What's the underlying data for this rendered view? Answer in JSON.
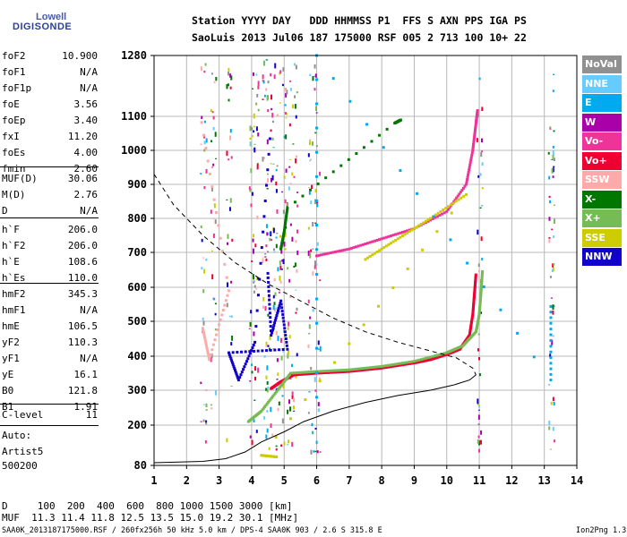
{
  "logo": {
    "line1": "Lowell",
    "line2": "DIGISONDE"
  },
  "header": {
    "row1": "Station YYYY DAY   DDD HHMMSS P1  FFS S AXN PPS IGA PS",
    "row2": "SaoLuis 2013 Jul06 187 175000 RSF 005 2 713 100 10+ 22"
  },
  "params": {
    "group1": [
      {
        "name": "foF2",
        "value": "10.900"
      },
      {
        "name": "foF1",
        "value": "N/A"
      },
      {
        "name": "foF1p",
        "value": "N/A"
      },
      {
        "name": "foE",
        "value": "3.56"
      },
      {
        "name": "foEp",
        "value": "3.40"
      },
      {
        "name": "fxI",
        "value": "11.20"
      },
      {
        "name": "foEs",
        "value": "4.00"
      },
      {
        "name": "fmin",
        "value": "2.60"
      }
    ],
    "group2": [
      {
        "name": "MUF(D)",
        "value": "30.06"
      },
      {
        "name": "M(D)",
        "value": "2.76"
      },
      {
        "name": "D",
        "value": "N/A"
      }
    ],
    "group3": [
      {
        "name": "h`F",
        "value": "206.0"
      },
      {
        "name": "h`F2",
        "value": "206.0"
      },
      {
        "name": "h`E",
        "value": "108.6"
      },
      {
        "name": "h`Es",
        "value": "110.0"
      }
    ],
    "group4": [
      {
        "name": "hmF2",
        "value": "345.3"
      },
      {
        "name": "hmF1",
        "value": "N/A"
      },
      {
        "name": "hmE",
        "value": "106.5"
      },
      {
        "name": "yF2",
        "value": "110.3"
      },
      {
        "name": "yF1",
        "value": "N/A"
      },
      {
        "name": "yE",
        "value": "16.1"
      },
      {
        "name": "B0",
        "value": "121.8"
      },
      {
        "name": "B1",
        "value": "1.91"
      }
    ],
    "group5": [
      {
        "name": "C-level",
        "value": "11"
      }
    ]
  },
  "autoscale": {
    "line1": "Auto:",
    "line2": "Artist5",
    "line3": "500200"
  },
  "legend": [
    {
      "label": "NoVal",
      "color": "#909090"
    },
    {
      "label": "NNE",
      "color": "#66ccff"
    },
    {
      "label": "E",
      "color": "#00aaee"
    },
    {
      "label": "W",
      "color": "#aa00aa"
    },
    {
      "label": "Vo-",
      "color": "#ee3399"
    },
    {
      "label": "Vo+",
      "color": "#ee0033"
    },
    {
      "label": "SSW",
      "color": "#ffaaaa"
    },
    {
      "label": "X-",
      "color": "#007700"
    },
    {
      "label": "X+",
      "color": "#77bb55"
    },
    {
      "label": "SSE",
      "color": "#cccc00"
    },
    {
      "label": "NNW",
      "color": "#1100cc"
    }
  ],
  "muf_table": {
    "row1": "D     100  200  400  600  800 1000 1500 3000 [km]",
    "row2": "MUF  11.3 11.4 11.8 12.5 13.5 15.0 19.2 30.1 [MHz]"
  },
  "footer": {
    "left": "SAA0K_2013187175000.RSF / 260fx256h 50 kHz 5.0 km / DPS-4 SAA0K 903 / 2.6 S 315.8 E",
    "right": "Ion2Png 1.3.17"
  },
  "chart_data": {
    "type": "scatter",
    "xlim": [
      1,
      14
    ],
    "ylim": [
      80,
      1280
    ],
    "x_ticks": [
      "1",
      "2",
      "3",
      "4",
      "5",
      "6",
      "7",
      "8",
      "9",
      "10",
      "11",
      "12",
      "13",
      "14"
    ],
    "y_ticks": [
      "80",
      "200",
      "300",
      "400",
      "500",
      "600",
      "700",
      "800",
      "900",
      "1000",
      "1100",
      "1280"
    ],
    "grid": true,
    "series": [
      {
        "name": "Vo+",
        "color": "#ee0033",
        "points": [
          [
            4.6,
            305
          ],
          [
            4.9,
            325
          ],
          [
            5.3,
            345
          ],
          [
            6,
            350
          ],
          [
            7,
            355
          ],
          [
            8,
            365
          ],
          [
            9,
            380
          ],
          [
            9.5,
            390
          ],
          [
            10,
            405
          ],
          [
            10.4,
            420
          ],
          [
            10.7,
            460
          ],
          [
            10.8,
            520
          ],
          [
            10.85,
            580
          ],
          [
            10.9,
            640
          ]
        ]
      },
      {
        "name": "X+",
        "color": "#77bb55",
        "points": [
          [
            3.9,
            210
          ],
          [
            4.3,
            240
          ],
          [
            4.8,
            300
          ],
          [
            5.2,
            350
          ],
          [
            6,
            355
          ],
          [
            7,
            360
          ],
          [
            8,
            370
          ],
          [
            9,
            385
          ],
          [
            10,
            410
          ],
          [
            10.5,
            430
          ],
          [
            10.9,
            470
          ],
          [
            11,
            520
          ],
          [
            11.05,
            580
          ],
          [
            11.1,
            650
          ]
        ]
      },
      {
        "name": "Vo-",
        "color": "#ee3399",
        "points": [
          [
            6,
            690
          ],
          [
            7,
            710
          ],
          [
            8,
            740
          ],
          [
            9,
            770
          ],
          [
            10,
            820
          ],
          [
            10.6,
            900
          ],
          [
            10.8,
            1000
          ],
          [
            10.9,
            1080
          ],
          [
            10.95,
            1120
          ]
        ]
      },
      {
        "name": "X-",
        "color": "#007700",
        "points": [
          [
            4.9,
            710
          ],
          [
            5,
            760
          ],
          [
            5.1,
            830
          ],
          [
            8.4,
            1080
          ],
          [
            8.6,
            1090
          ]
        ]
      },
      {
        "name": "NNW",
        "color": "#1100cc",
        "points": [
          [
            4.5,
            640
          ],
          [
            4.6,
            460
          ],
          [
            4.9,
            560
          ],
          [
            5.1,
            420
          ],
          [
            3.3,
            410
          ],
          [
            3.6,
            330
          ],
          [
            4.1,
            440
          ],
          [
            4.6,
            1080
          ]
        ]
      },
      {
        "name": "SSE",
        "color": "#cccc00",
        "points": [
          [
            7.5,
            680
          ],
          [
            8.5,
            740
          ],
          [
            9.5,
            800
          ],
          [
            10.6,
            870
          ],
          [
            4.3,
            110
          ],
          [
            4.8,
            105
          ]
        ]
      },
      {
        "name": "E",
        "color": "#00aaee",
        "points": [
          [
            6,
            280
          ],
          [
            6,
            1280
          ],
          [
            13.2,
            330
          ],
          [
            13.2,
            560
          ]
        ]
      },
      {
        "name": "SSW",
        "color": "#ffaaaa",
        "points": [
          [
            2.5,
            480
          ],
          [
            2.7,
            390
          ],
          [
            3.3,
            590
          ],
          [
            2.4,
            1120
          ]
        ]
      }
    ],
    "curves": [
      {
        "style": "solid",
        "points": [
          [
            1,
            88
          ],
          [
            2.5,
            92
          ],
          [
            3.2,
            100
          ],
          [
            3.8,
            120
          ],
          [
            4.3,
            150
          ],
          [
            5,
            180
          ],
          [
            5.6,
            210
          ],
          [
            6.5,
            240
          ],
          [
            7.5,
            265
          ],
          [
            8.5,
            285
          ],
          [
            9.5,
            300
          ],
          [
            10.2,
            315
          ],
          [
            10.7,
            330
          ],
          [
            10.9,
            345
          ]
        ]
      },
      {
        "style": "dashed",
        "points": [
          [
            1,
            930
          ],
          [
            1.6,
            840
          ],
          [
            2.5,
            750
          ],
          [
            3.5,
            670
          ],
          [
            4.5,
            610
          ],
          [
            5.5,
            560
          ],
          [
            6.5,
            510
          ],
          [
            7.5,
            470
          ],
          [
            8.5,
            440
          ],
          [
            9.5,
            415
          ],
          [
            10.3,
            395
          ],
          [
            10.8,
            365
          ],
          [
            10.9,
            345
          ]
        ]
      }
    ]
  }
}
